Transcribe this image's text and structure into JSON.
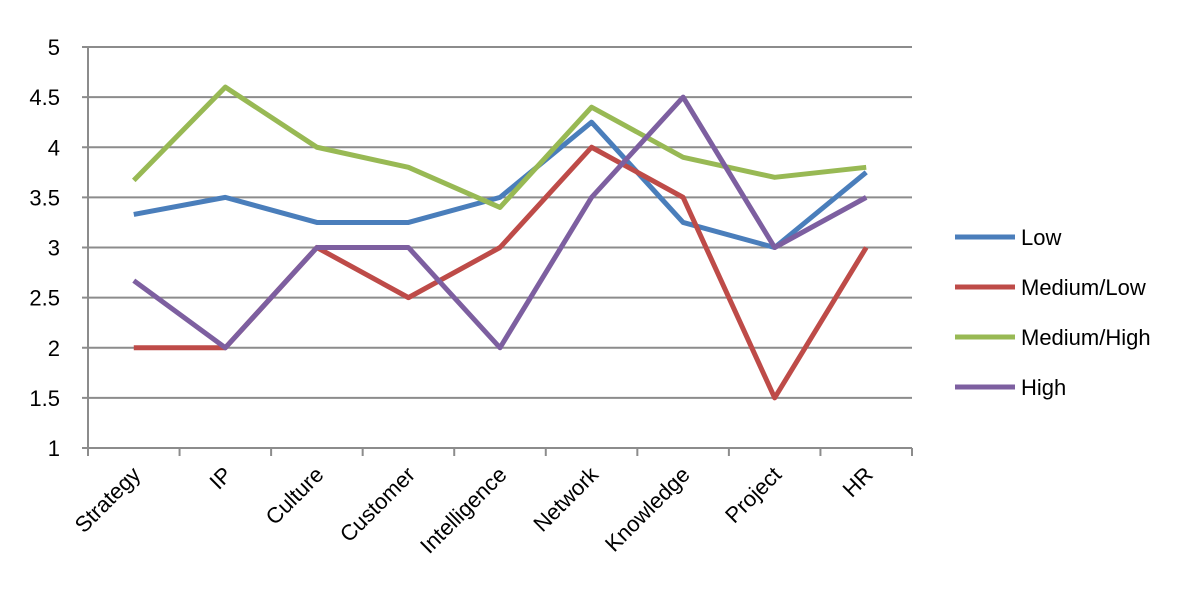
{
  "chart_data": {
    "type": "line",
    "title": "",
    "xlabel": "",
    "ylabel": "",
    "ylim": [
      1,
      5
    ],
    "yticks": [
      "1",
      "1.5",
      "2",
      "2.5",
      "3",
      "3.5",
      "4",
      "4.5",
      "5"
    ],
    "grid": "horizontal",
    "legend_position": "right",
    "categories": [
      "Strategy",
      "IP",
      "Culture",
      "Customer",
      "Intelligence",
      "Network",
      "Knowledge",
      "Project",
      "HR"
    ],
    "series": [
      {
        "name": "Low",
        "color": "#4a7ebb",
        "values": [
          3.33,
          3.5,
          3.25,
          3.25,
          3.5,
          4.25,
          3.25,
          3.0,
          3.75
        ]
      },
      {
        "name": "Medium/Low",
        "color": "#be4b48",
        "values": [
          2.0,
          2.0,
          3.0,
          2.5,
          3.0,
          4.0,
          3.5,
          1.5,
          3.0
        ]
      },
      {
        "name": "Medium/High",
        "color": "#98b954",
        "values": [
          3.67,
          4.6,
          4.0,
          3.8,
          3.4,
          4.4,
          3.9,
          3.7,
          3.8
        ]
      },
      {
        "name": "High",
        "color": "#7d5fa0",
        "values": [
          2.67,
          2.0,
          3.0,
          3.0,
          2.0,
          3.5,
          4.5,
          3.0,
          3.5
        ]
      }
    ]
  }
}
